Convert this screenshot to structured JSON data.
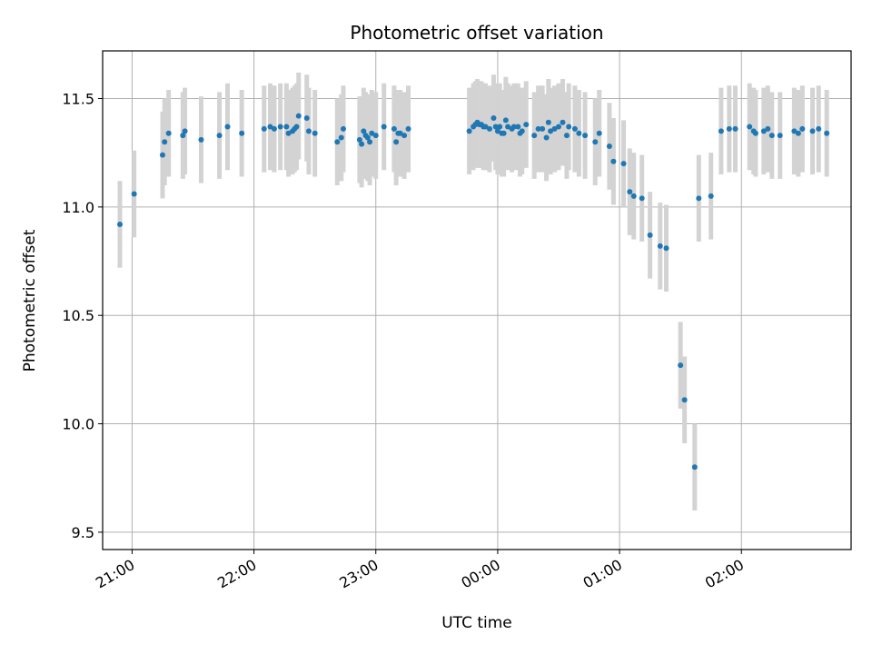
{
  "chart_data": {
    "type": "scatter",
    "title": "Photometric offset variation",
    "xlabel": "UTC time",
    "ylabel": "Photometric offset",
    "x_ticks": [
      "21:00",
      "22:00",
      "23:00",
      "00:00",
      "01:00",
      "02:00"
    ],
    "y_ticks": [
      "9.5",
      "10.0",
      "10.5",
      "11.0",
      "11.5"
    ],
    "ylim": [
      9.42,
      11.72
    ],
    "grid": true,
    "colors": {
      "point": "#1f77b4",
      "errorbar": "#d3d3d3",
      "grid": "#b0b0b0"
    },
    "series": [
      {
        "x": [
          "20:54",
          "21:01",
          "21:15",
          "21:16",
          "21:18",
          "21:25",
          "21:26",
          "21:34",
          "21:43",
          "21:47",
          "21:54",
          "22:05",
          "22:08",
          "22:10",
          "22:13",
          "22:16",
          "22:17",
          "22:19",
          "22:20",
          "22:21",
          "22:22",
          "22:26",
          "22:27",
          "22:30",
          "22:41",
          "22:43",
          "22:44",
          "22:52",
          "22:53",
          "22:54",
          "22:55",
          "22:56",
          "22:57",
          "22:58",
          "23:00",
          "23:04",
          "23:09",
          "23:10",
          "23:11",
          "23:12",
          "23:14",
          "23:16",
          "23:46",
          "23:48",
          "23:49",
          "23:50",
          "23:51",
          "23:52",
          "23:53",
          "23:54",
          "23:56",
          "23:58",
          "23:59",
          "00:00",
          "00:01",
          "00:02",
          "00:03",
          "00:04",
          "00:05",
          "00:07",
          "00:08",
          "00:10",
          "00:11",
          "00:12",
          "00:14",
          "00:18",
          "00:20",
          "00:22",
          "00:24",
          "00:25",
          "00:26",
          "00:28",
          "00:30",
          "00:32",
          "00:34",
          "00:35",
          "00:38",
          "00:40",
          "00:43",
          "00:48",
          "00:50",
          "00:55",
          "00:57",
          "01:02",
          "01:05",
          "01:07",
          "01:11",
          "01:15",
          "01:20",
          "01:23",
          "01:30",
          "01:32",
          "01:37",
          "01:39",
          "01:45",
          "01:50",
          "01:54",
          "01:57",
          "02:04",
          "02:06",
          "02:07",
          "02:11",
          "02:13",
          "02:15",
          "02:19",
          "02:26",
          "02:28",
          "02:30",
          "02:35",
          "02:38",
          "02:42"
        ],
        "y": [
          10.92,
          11.06,
          11.24,
          11.3,
          11.34,
          11.33,
          11.35,
          11.31,
          11.33,
          11.37,
          11.34,
          11.36,
          11.37,
          11.36,
          11.37,
          11.37,
          11.34,
          11.35,
          11.36,
          11.37,
          11.42,
          11.41,
          11.35,
          11.34,
          11.3,
          11.32,
          11.36,
          11.31,
          11.29,
          11.35,
          11.33,
          11.32,
          11.3,
          11.34,
          11.33,
          11.37,
          11.36,
          11.3,
          11.34,
          11.34,
          11.33,
          11.36,
          11.35,
          11.37,
          11.38,
          11.39,
          11.38,
          11.38,
          11.37,
          11.37,
          11.36,
          11.41,
          11.37,
          11.35,
          11.37,
          11.34,
          11.34,
          11.4,
          11.37,
          11.36,
          11.37,
          11.37,
          11.34,
          11.35,
          11.38,
          11.33,
          11.36,
          11.36,
          11.32,
          11.39,
          11.35,
          11.36,
          11.37,
          11.39,
          11.33,
          11.37,
          11.36,
          11.34,
          11.33,
          11.3,
          11.34,
          11.28,
          11.21,
          11.2,
          11.07,
          11.05,
          11.04,
          10.87,
          10.82,
          10.81,
          10.27,
          10.11,
          9.8,
          11.04,
          11.05,
          11.35,
          11.36,
          11.36,
          11.37,
          11.35,
          11.34,
          11.35,
          11.36,
          11.33,
          11.33,
          11.35,
          11.34,
          11.36,
          11.35,
          11.36,
          11.34
        ],
        "yerr": 0.2
      }
    ]
  }
}
